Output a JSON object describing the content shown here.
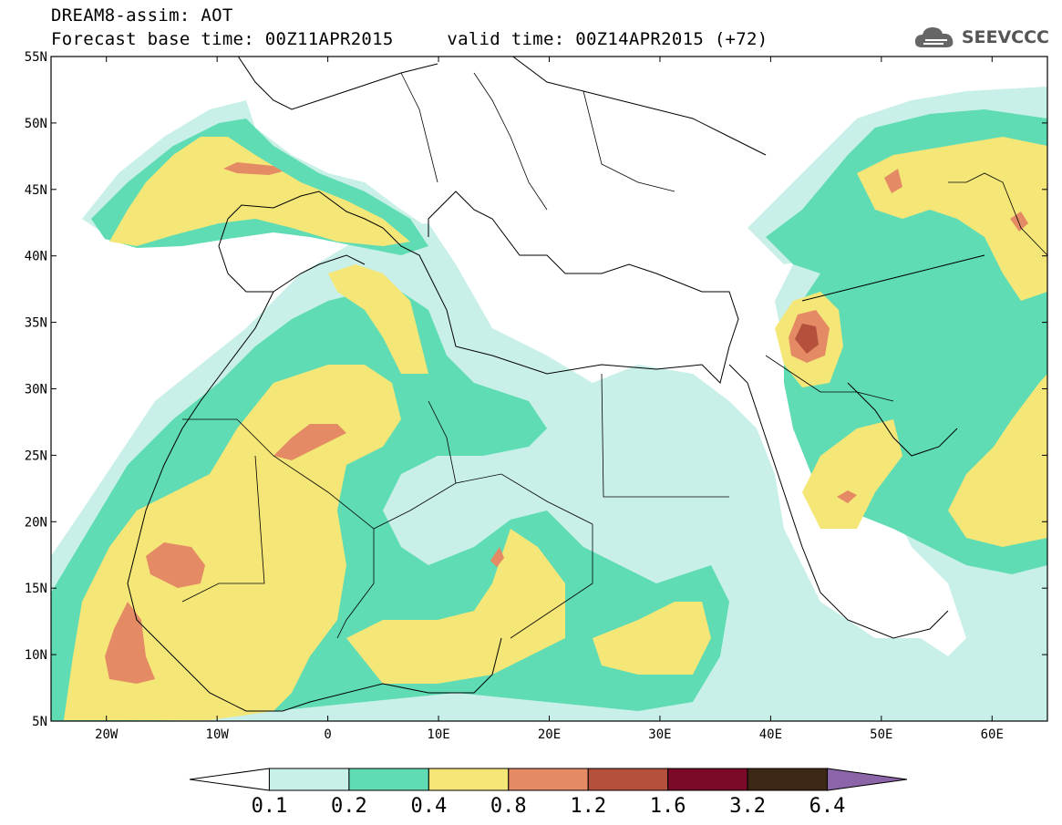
{
  "header": {
    "title": "DREAM8-assim: AOT",
    "subtitle": "Forecast base time: 00Z11APR2015     valid time: 00Z14APR2015 (+72)",
    "logo_text": "SEEVCCC"
  },
  "chart_data": {
    "type": "heatmap",
    "variable": "AOT",
    "lon_range": [
      -25,
      65
    ],
    "lat_range": [
      5,
      55
    ],
    "lat_ticks": [
      "5N",
      "10N",
      "15N",
      "20N",
      "25N",
      "30N",
      "35N",
      "40N",
      "45N",
      "50N",
      "55N"
    ],
    "lon_ticks": [
      "20W",
      "10W",
      "0",
      "10E",
      "20E",
      "30E",
      "40E",
      "50E",
      "60E"
    ],
    "colorbar": {
      "levels": [
        "0.1",
        "0.2",
        "0.4",
        "0.8",
        "1.2",
        "1.6",
        "3.2",
        "6.4"
      ],
      "colors": [
        "#ffffff",
        "#c8f0e8",
        "#5fdcb4",
        "#f5e678",
        "#e48a64",
        "#b4503c",
        "#7a0a28",
        "#3c2814",
        "#8c64a8"
      ]
    }
  }
}
